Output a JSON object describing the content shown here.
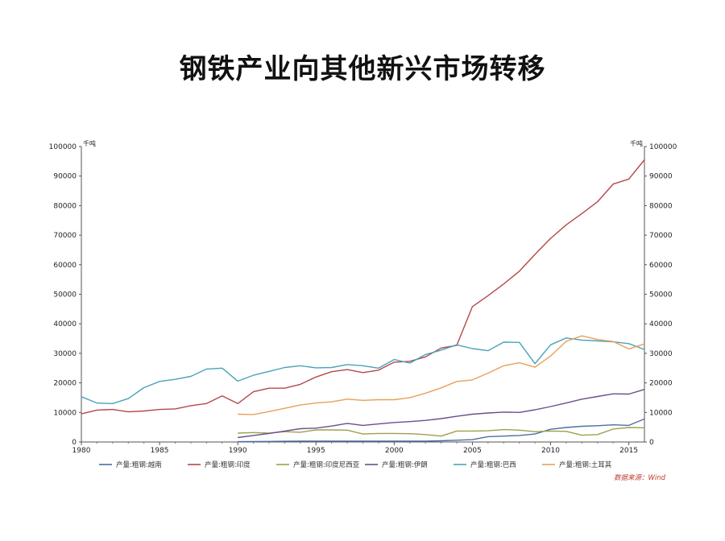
{
  "title": "钢铁产业向其他新兴市场转移",
  "chart_data": {
    "type": "line",
    "title": "钢铁产业向其他新兴市场转移",
    "ylabel_left_unit": "千吨",
    "ylabel_right_unit": "千吨",
    "xlim": [
      1980,
      2016
    ],
    "ylim": [
      0,
      100000
    ],
    "x_ticks": [
      "1980",
      "1985",
      "1990",
      "1995",
      "2000",
      "2005",
      "2010",
      "2015"
    ],
    "y_ticks": [
      "0",
      "10000",
      "20000",
      "30000",
      "40000",
      "50000",
      "60000",
      "70000",
      "80000",
      "90000",
      "100000"
    ],
    "grid": false,
    "legend_position": "bottom",
    "source_note": "数据来源：Wind",
    "series": [
      {
        "name": "产量:粗钢:越南",
        "color": "#4a6fa5",
        "points": [
          [
            1990,
            100
          ],
          [
            1991,
            150
          ],
          [
            1992,
            200
          ],
          [
            1993,
            250
          ],
          [
            1994,
            300
          ],
          [
            1995,
            300
          ],
          [
            1996,
            300
          ],
          [
            1997,
            310
          ],
          [
            1998,
            310
          ],
          [
            1999,
            300
          ],
          [
            2000,
            300
          ],
          [
            2001,
            300
          ],
          [
            2002,
            300
          ],
          [
            2003,
            400
          ],
          [
            2004,
            600
          ],
          [
            2005,
            800
          ],
          [
            2006,
            1800
          ],
          [
            2007,
            2000
          ],
          [
            2008,
            2200
          ],
          [
            2009,
            2700
          ],
          [
            2010,
            4300
          ],
          [
            2011,
            4900
          ],
          [
            2012,
            5300
          ],
          [
            2013,
            5500
          ],
          [
            2014,
            5800
          ],
          [
            2015,
            5600
          ],
          [
            2016,
            7800
          ]
        ]
      },
      {
        "name": "产量:粗钢:印度",
        "color": "#b5474a",
        "points": [
          [
            1980,
            9500
          ],
          [
            1981,
            10800
          ],
          [
            1982,
            11000
          ],
          [
            1983,
            10200
          ],
          [
            1984,
            10500
          ],
          [
            1985,
            11000
          ],
          [
            1986,
            11200
          ],
          [
            1987,
            12300
          ],
          [
            1988,
            13000
          ],
          [
            1989,
            15600
          ],
          [
            1990,
            13000
          ],
          [
            1991,
            17000
          ],
          [
            1992,
            18200
          ],
          [
            1993,
            18200
          ],
          [
            1994,
            19500
          ],
          [
            1995,
            22000
          ],
          [
            1996,
            23800
          ],
          [
            1997,
            24500
          ],
          [
            1998,
            23500
          ],
          [
            1999,
            24300
          ],
          [
            2000,
            27000
          ],
          [
            2001,
            27300
          ],
          [
            2002,
            28800
          ],
          [
            2003,
            31800
          ],
          [
            2004,
            32700
          ],
          [
            2005,
            45800
          ],
          [
            2006,
            49500
          ],
          [
            2007,
            53500
          ],
          [
            2008,
            57800
          ],
          [
            2009,
            63500
          ],
          [
            2010,
            68900
          ],
          [
            2011,
            73500
          ],
          [
            2012,
            77300
          ],
          [
            2013,
            81300
          ],
          [
            2014,
            87300
          ],
          [
            2015,
            89000
          ],
          [
            2016,
            95500
          ]
        ]
      },
      {
        "name": "产量:粗钢:印度尼西亚",
        "color": "#9aa14e",
        "points": [
          [
            1990,
            3000
          ],
          [
            1991,
            3200
          ],
          [
            1992,
            3000
          ],
          [
            1993,
            3500
          ],
          [
            1994,
            3300
          ],
          [
            1995,
            4100
          ],
          [
            1996,
            4100
          ],
          [
            1997,
            4000
          ],
          [
            1998,
            2700
          ],
          [
            1999,
            2900
          ],
          [
            2000,
            2900
          ],
          [
            2001,
            2800
          ],
          [
            2002,
            2500
          ],
          [
            2003,
            2000
          ],
          [
            2004,
            3700
          ],
          [
            2005,
            3700
          ],
          [
            2006,
            3800
          ],
          [
            2007,
            4200
          ],
          [
            2008,
            4000
          ],
          [
            2009,
            3500
          ],
          [
            2010,
            3700
          ],
          [
            2011,
            3600
          ],
          [
            2012,
            2300
          ],
          [
            2013,
            2500
          ],
          [
            2014,
            4400
          ],
          [
            2015,
            4900
          ],
          [
            2016,
            4800
          ]
        ]
      },
      {
        "name": "产量:粗钢:伊朗",
        "color": "#6a4f8c",
        "points": [
          [
            1990,
            1500
          ],
          [
            1991,
            2200
          ],
          [
            1992,
            2900
          ],
          [
            1993,
            3700
          ],
          [
            1994,
            4500
          ],
          [
            1995,
            4700
          ],
          [
            1996,
            5400
          ],
          [
            1997,
            6300
          ],
          [
            1998,
            5600
          ],
          [
            1999,
            6100
          ],
          [
            2000,
            6600
          ],
          [
            2001,
            6900
          ],
          [
            2002,
            7300
          ],
          [
            2003,
            7900
          ],
          [
            2004,
            8700
          ],
          [
            2005,
            9400
          ],
          [
            2006,
            9800
          ],
          [
            2007,
            10100
          ],
          [
            2008,
            10000
          ],
          [
            2009,
            10900
          ],
          [
            2010,
            12000
          ],
          [
            2011,
            13200
          ],
          [
            2012,
            14500
          ],
          [
            2013,
            15400
          ],
          [
            2014,
            16300
          ],
          [
            2015,
            16200
          ],
          [
            2016,
            17800
          ]
        ]
      },
      {
        "name": "产量:粗钢:巴西",
        "color": "#4aa3b8",
        "points": [
          [
            1980,
            15300
          ],
          [
            1981,
            13200
          ],
          [
            1982,
            13000
          ],
          [
            1983,
            14700
          ],
          [
            1984,
            18400
          ],
          [
            1985,
            20500
          ],
          [
            1986,
            21200
          ],
          [
            1987,
            22200
          ],
          [
            1988,
            24700
          ],
          [
            1989,
            25000
          ],
          [
            1990,
            20600
          ],
          [
            1991,
            22600
          ],
          [
            1992,
            23900
          ],
          [
            1993,
            25200
          ],
          [
            1994,
            25800
          ],
          [
            1995,
            25100
          ],
          [
            1996,
            25200
          ],
          [
            1997,
            26200
          ],
          [
            1998,
            25800
          ],
          [
            1999,
            25000
          ],
          [
            2000,
            27900
          ],
          [
            2001,
            26700
          ],
          [
            2002,
            29600
          ],
          [
            2003,
            31100
          ],
          [
            2004,
            32900
          ],
          [
            2005,
            31600
          ],
          [
            2006,
            30900
          ],
          [
            2007,
            33800
          ],
          [
            2008,
            33700
          ],
          [
            2009,
            26500
          ],
          [
            2010,
            32900
          ],
          [
            2011,
            35200
          ],
          [
            2012,
            34500
          ],
          [
            2013,
            34200
          ],
          [
            2014,
            33900
          ],
          [
            2015,
            33300
          ],
          [
            2016,
            31300
          ]
        ]
      },
      {
        "name": "产量:粗钢:土耳其",
        "color": "#e8a05a",
        "points": [
          [
            1990,
            9400
          ],
          [
            1991,
            9300
          ],
          [
            1992,
            10300
          ],
          [
            1993,
            11400
          ],
          [
            1994,
            12500
          ],
          [
            1995,
            13200
          ],
          [
            1996,
            13600
          ],
          [
            1997,
            14500
          ],
          [
            1998,
            14100
          ],
          [
            1999,
            14300
          ],
          [
            2000,
            14300
          ],
          [
            2001,
            15000
          ],
          [
            2002,
            16500
          ],
          [
            2003,
            18300
          ],
          [
            2004,
            20500
          ],
          [
            2005,
            21000
          ],
          [
            2006,
            23300
          ],
          [
            2007,
            25800
          ],
          [
            2008,
            26800
          ],
          [
            2009,
            25300
          ],
          [
            2010,
            29100
          ],
          [
            2011,
            34100
          ],
          [
            2012,
            35900
          ],
          [
            2013,
            34700
          ],
          [
            2014,
            34000
          ],
          [
            2015,
            31500
          ],
          [
            2016,
            33200
          ]
        ]
      }
    ]
  }
}
